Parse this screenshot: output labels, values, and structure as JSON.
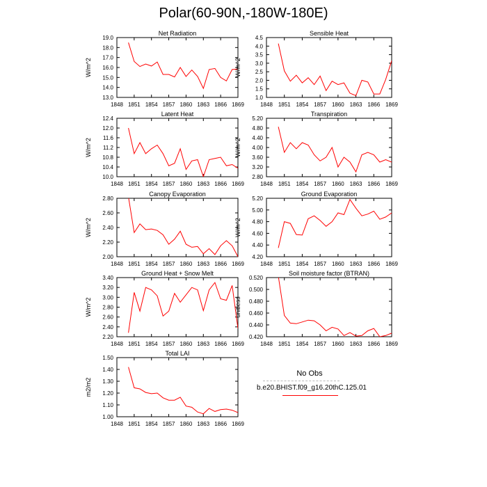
{
  "page": {
    "title": "Polar(60-90N,-180W-180E)"
  },
  "legend": {
    "entries": [
      {
        "label": "No Obs",
        "style": "dashed",
        "color": "#b8b8b8"
      },
      {
        "label": "b.e20.BHIST.f09_g16.20thC.125.01",
        "style": "solid",
        "color": "#ff0000"
      }
    ]
  },
  "chart_data": [
    {
      "type": "line",
      "title": "Net Radiation",
      "ylabel": "W/m^2",
      "xlim": [
        1848,
        1869
      ],
      "ylim": [
        13.0,
        19.0
      ],
      "yticks": [
        "13.0",
        "14.0",
        "15.0",
        "16.0",
        "17.0",
        "18.0",
        "19.0"
      ],
      "xticks": [
        "1848",
        "1851",
        "1854",
        "1857",
        "1860",
        "1863",
        "1866",
        "1869"
      ],
      "series": [
        {
          "color": "#ff0000",
          "x": [
            1850,
            1851,
            1852,
            1853,
            1854,
            1855,
            1856,
            1857,
            1858,
            1859,
            1860,
            1861,
            1862,
            1863,
            1864,
            1865,
            1866,
            1867,
            1868,
            1869
          ],
          "values": [
            18.5,
            16.6,
            16.1,
            16.35,
            16.15,
            16.55,
            15.3,
            15.3,
            15.05,
            16.0,
            15.1,
            15.75,
            15.1,
            13.9,
            15.8,
            15.9,
            15.0,
            14.65,
            15.8,
            15.85
          ]
        }
      ]
    },
    {
      "type": "line",
      "title": "Sensible Heat",
      "ylabel": "W/m^2",
      "xlim": [
        1848,
        1869
      ],
      "ylim": [
        1.0,
        4.5
      ],
      "yticks": [
        "1.0",
        "1.5",
        "2.0",
        "2.5",
        "3.0",
        "3.5",
        "4.0",
        "4.5"
      ],
      "xticks": [
        "1848",
        "1851",
        "1854",
        "1857",
        "1860",
        "1863",
        "1866",
        "1869"
      ],
      "series": [
        {
          "color": "#ff0000",
          "x": [
            1850,
            1851,
            1852,
            1853,
            1854,
            1855,
            1856,
            1857,
            1858,
            1859,
            1860,
            1861,
            1862,
            1863,
            1864,
            1865,
            1866,
            1867,
            1868,
            1869
          ],
          "values": [
            4.15,
            2.55,
            1.95,
            2.3,
            1.85,
            2.15,
            1.75,
            2.25,
            1.4,
            1.95,
            1.75,
            1.85,
            1.25,
            1.1,
            2.0,
            1.9,
            1.2,
            1.2,
            2.05,
            3.15
          ]
        }
      ]
    },
    {
      "type": "line",
      "title": "Latent Heat",
      "ylabel": "W/m^2",
      "xlim": [
        1848,
        1869
      ],
      "ylim": [
        10.0,
        12.4
      ],
      "yticks": [
        "10.0",
        "10.4",
        "10.8",
        "11.2",
        "11.6",
        "12.0",
        "12.4"
      ],
      "xticks": [
        "1848",
        "1851",
        "1854",
        "1857",
        "1860",
        "1863",
        "1866",
        "1869"
      ],
      "series": [
        {
          "color": "#ff0000",
          "x": [
            1850,
            1851,
            1852,
            1853,
            1854,
            1855,
            1856,
            1857,
            1858,
            1859,
            1860,
            1861,
            1862,
            1863,
            1864,
            1865,
            1866,
            1867,
            1868,
            1869
          ],
          "values": [
            12.0,
            10.95,
            11.4,
            10.95,
            11.15,
            11.3,
            10.95,
            10.45,
            10.55,
            11.15,
            10.3,
            10.65,
            10.7,
            10.0,
            10.7,
            10.75,
            10.8,
            10.45,
            10.5,
            10.35
          ]
        }
      ]
    },
    {
      "type": "line",
      "title": "Transpiration",
      "ylabel": "W/m^2",
      "xlim": [
        1848,
        1869
      ],
      "ylim": [
        2.8,
        5.2
      ],
      "yticks": [
        "2.80",
        "3.20",
        "3.60",
        "4.00",
        "4.40",
        "4.80",
        "5.20"
      ],
      "xticks": [
        "1848",
        "1851",
        "1854",
        "1857",
        "1860",
        "1863",
        "1866",
        "1869"
      ],
      "series": [
        {
          "color": "#ff0000",
          "x": [
            1850,
            1851,
            1852,
            1853,
            1854,
            1855,
            1856,
            1857,
            1858,
            1859,
            1860,
            1861,
            1862,
            1863,
            1864,
            1865,
            1866,
            1867,
            1868,
            1869
          ],
          "values": [
            4.85,
            3.8,
            4.2,
            3.95,
            4.2,
            4.1,
            3.7,
            3.45,
            3.6,
            4.0,
            3.2,
            3.6,
            3.4,
            3.0,
            3.7,
            3.8,
            3.7,
            3.4,
            3.5,
            3.4
          ]
        }
      ]
    },
    {
      "type": "line",
      "title": "Canopy Evaporation",
      "ylabel": "W/m^2",
      "xlim": [
        1848,
        1869
      ],
      "ylim": [
        2.0,
        2.8
      ],
      "yticks": [
        "2.00",
        "2.20",
        "2.40",
        "2.60",
        "2.80"
      ],
      "xticks": [
        "1848",
        "1851",
        "1854",
        "1857",
        "1860",
        "1863",
        "1866",
        "1869"
      ],
      "series": [
        {
          "color": "#ff0000",
          "x": [
            1850,
            1851,
            1852,
            1853,
            1854,
            1855,
            1856,
            1857,
            1858,
            1859,
            1860,
            1861,
            1862,
            1863,
            1864,
            1865,
            1866,
            1867,
            1868,
            1869
          ],
          "values": [
            2.82,
            2.33,
            2.45,
            2.37,
            2.38,
            2.36,
            2.3,
            2.17,
            2.24,
            2.35,
            2.17,
            2.13,
            2.14,
            2.04,
            2.11,
            2.03,
            2.15,
            2.22,
            2.15,
            2.0
          ]
        }
      ]
    },
    {
      "type": "line",
      "title": "Ground Evaporation",
      "ylabel": "W/m^2",
      "xlim": [
        1848,
        1869
      ],
      "ylim": [
        4.2,
        5.2
      ],
      "yticks": [
        "4.20",
        "4.40",
        "4.60",
        "4.80",
        "5.00",
        "5.20"
      ],
      "xticks": [
        "1848",
        "1851",
        "1854",
        "1857",
        "1860",
        "1863",
        "1866",
        "1869"
      ],
      "series": [
        {
          "color": "#ff0000",
          "x": [
            1850,
            1851,
            1852,
            1853,
            1854,
            1855,
            1856,
            1857,
            1858,
            1859,
            1860,
            1861,
            1862,
            1863,
            1864,
            1865,
            1866,
            1867,
            1868,
            1869
          ],
          "values": [
            4.35,
            4.8,
            4.77,
            4.58,
            4.57,
            4.85,
            4.9,
            4.82,
            4.72,
            4.8,
            4.95,
            4.92,
            5.18,
            5.03,
            4.9,
            4.93,
            4.98,
            4.84,
            4.88,
            4.95
          ]
        }
      ]
    },
    {
      "type": "line",
      "title": "Ground Heat + Snow Melt",
      "ylabel": "W/m^2",
      "xlim": [
        1848,
        1869
      ],
      "ylim": [
        2.2,
        3.4
      ],
      "yticks": [
        "2.20",
        "2.40",
        "2.60",
        "2.80",
        "3.00",
        "3.20",
        "3.40"
      ],
      "xticks": [
        "1848",
        "1851",
        "1854",
        "1857",
        "1860",
        "1863",
        "1866",
        "1869"
      ],
      "series": [
        {
          "color": "#ff0000",
          "x": [
            1850,
            1851,
            1852,
            1853,
            1854,
            1855,
            1856,
            1857,
            1858,
            1859,
            1860,
            1861,
            1862,
            1863,
            1864,
            1865,
            1866,
            1867,
            1868,
            1869
          ],
          "values": [
            2.28,
            3.1,
            2.72,
            3.2,
            3.15,
            3.03,
            2.62,
            2.72,
            3.08,
            2.9,
            3.05,
            3.2,
            3.15,
            2.73,
            3.15,
            3.3,
            2.97,
            2.94,
            3.24,
            2.37
          ]
        }
      ]
    },
    {
      "type": "line",
      "title": "Soil moisture factor (BTRAN)",
      "ylabel": "unitless",
      "xlim": [
        1848,
        1869
      ],
      "ylim": [
        0.42,
        0.52
      ],
      "yticks": [
        "0.420",
        "0.440",
        "0.460",
        "0.480",
        "0.500",
        "0.520"
      ],
      "xticks": [
        "1848",
        "1851",
        "1854",
        "1857",
        "1860",
        "1863",
        "1866",
        "1869"
      ],
      "series": [
        {
          "color": "#ff0000",
          "x": [
            1850,
            1851,
            1852,
            1853,
            1854,
            1855,
            1856,
            1857,
            1858,
            1859,
            1860,
            1861,
            1862,
            1863,
            1864,
            1865,
            1866,
            1867,
            1868,
            1869
          ],
          "values": [
            0.522,
            0.456,
            0.443,
            0.442,
            0.445,
            0.448,
            0.447,
            0.44,
            0.43,
            0.436,
            0.433,
            0.422,
            0.427,
            0.421,
            0.422,
            0.43,
            0.434,
            0.42,
            0.422,
            0.426
          ]
        }
      ]
    },
    {
      "type": "line",
      "title": "Total LAI",
      "ylabel": "m2/m2",
      "xlim": [
        1848,
        1869
      ],
      "ylim": [
        1.0,
        1.5
      ],
      "yticks": [
        "1.00",
        "1.10",
        "1.20",
        "1.30",
        "1.40",
        "1.50"
      ],
      "xticks": [
        "1848",
        "1851",
        "1854",
        "1857",
        "1860",
        "1863",
        "1866",
        "1869"
      ],
      "series": [
        {
          "color": "#ff0000",
          "x": [
            1850,
            1851,
            1852,
            1853,
            1854,
            1855,
            1856,
            1857,
            1858,
            1859,
            1860,
            1861,
            1862,
            1863,
            1864,
            1865,
            1866,
            1867,
            1868,
            1869
          ],
          "values": [
            1.42,
            1.245,
            1.235,
            1.205,
            1.195,
            1.2,
            1.16,
            1.14,
            1.14,
            1.165,
            1.09,
            1.08,
            1.04,
            1.025,
            1.07,
            1.045,
            1.06,
            1.065,
            1.055,
            1.035
          ]
        }
      ]
    }
  ]
}
